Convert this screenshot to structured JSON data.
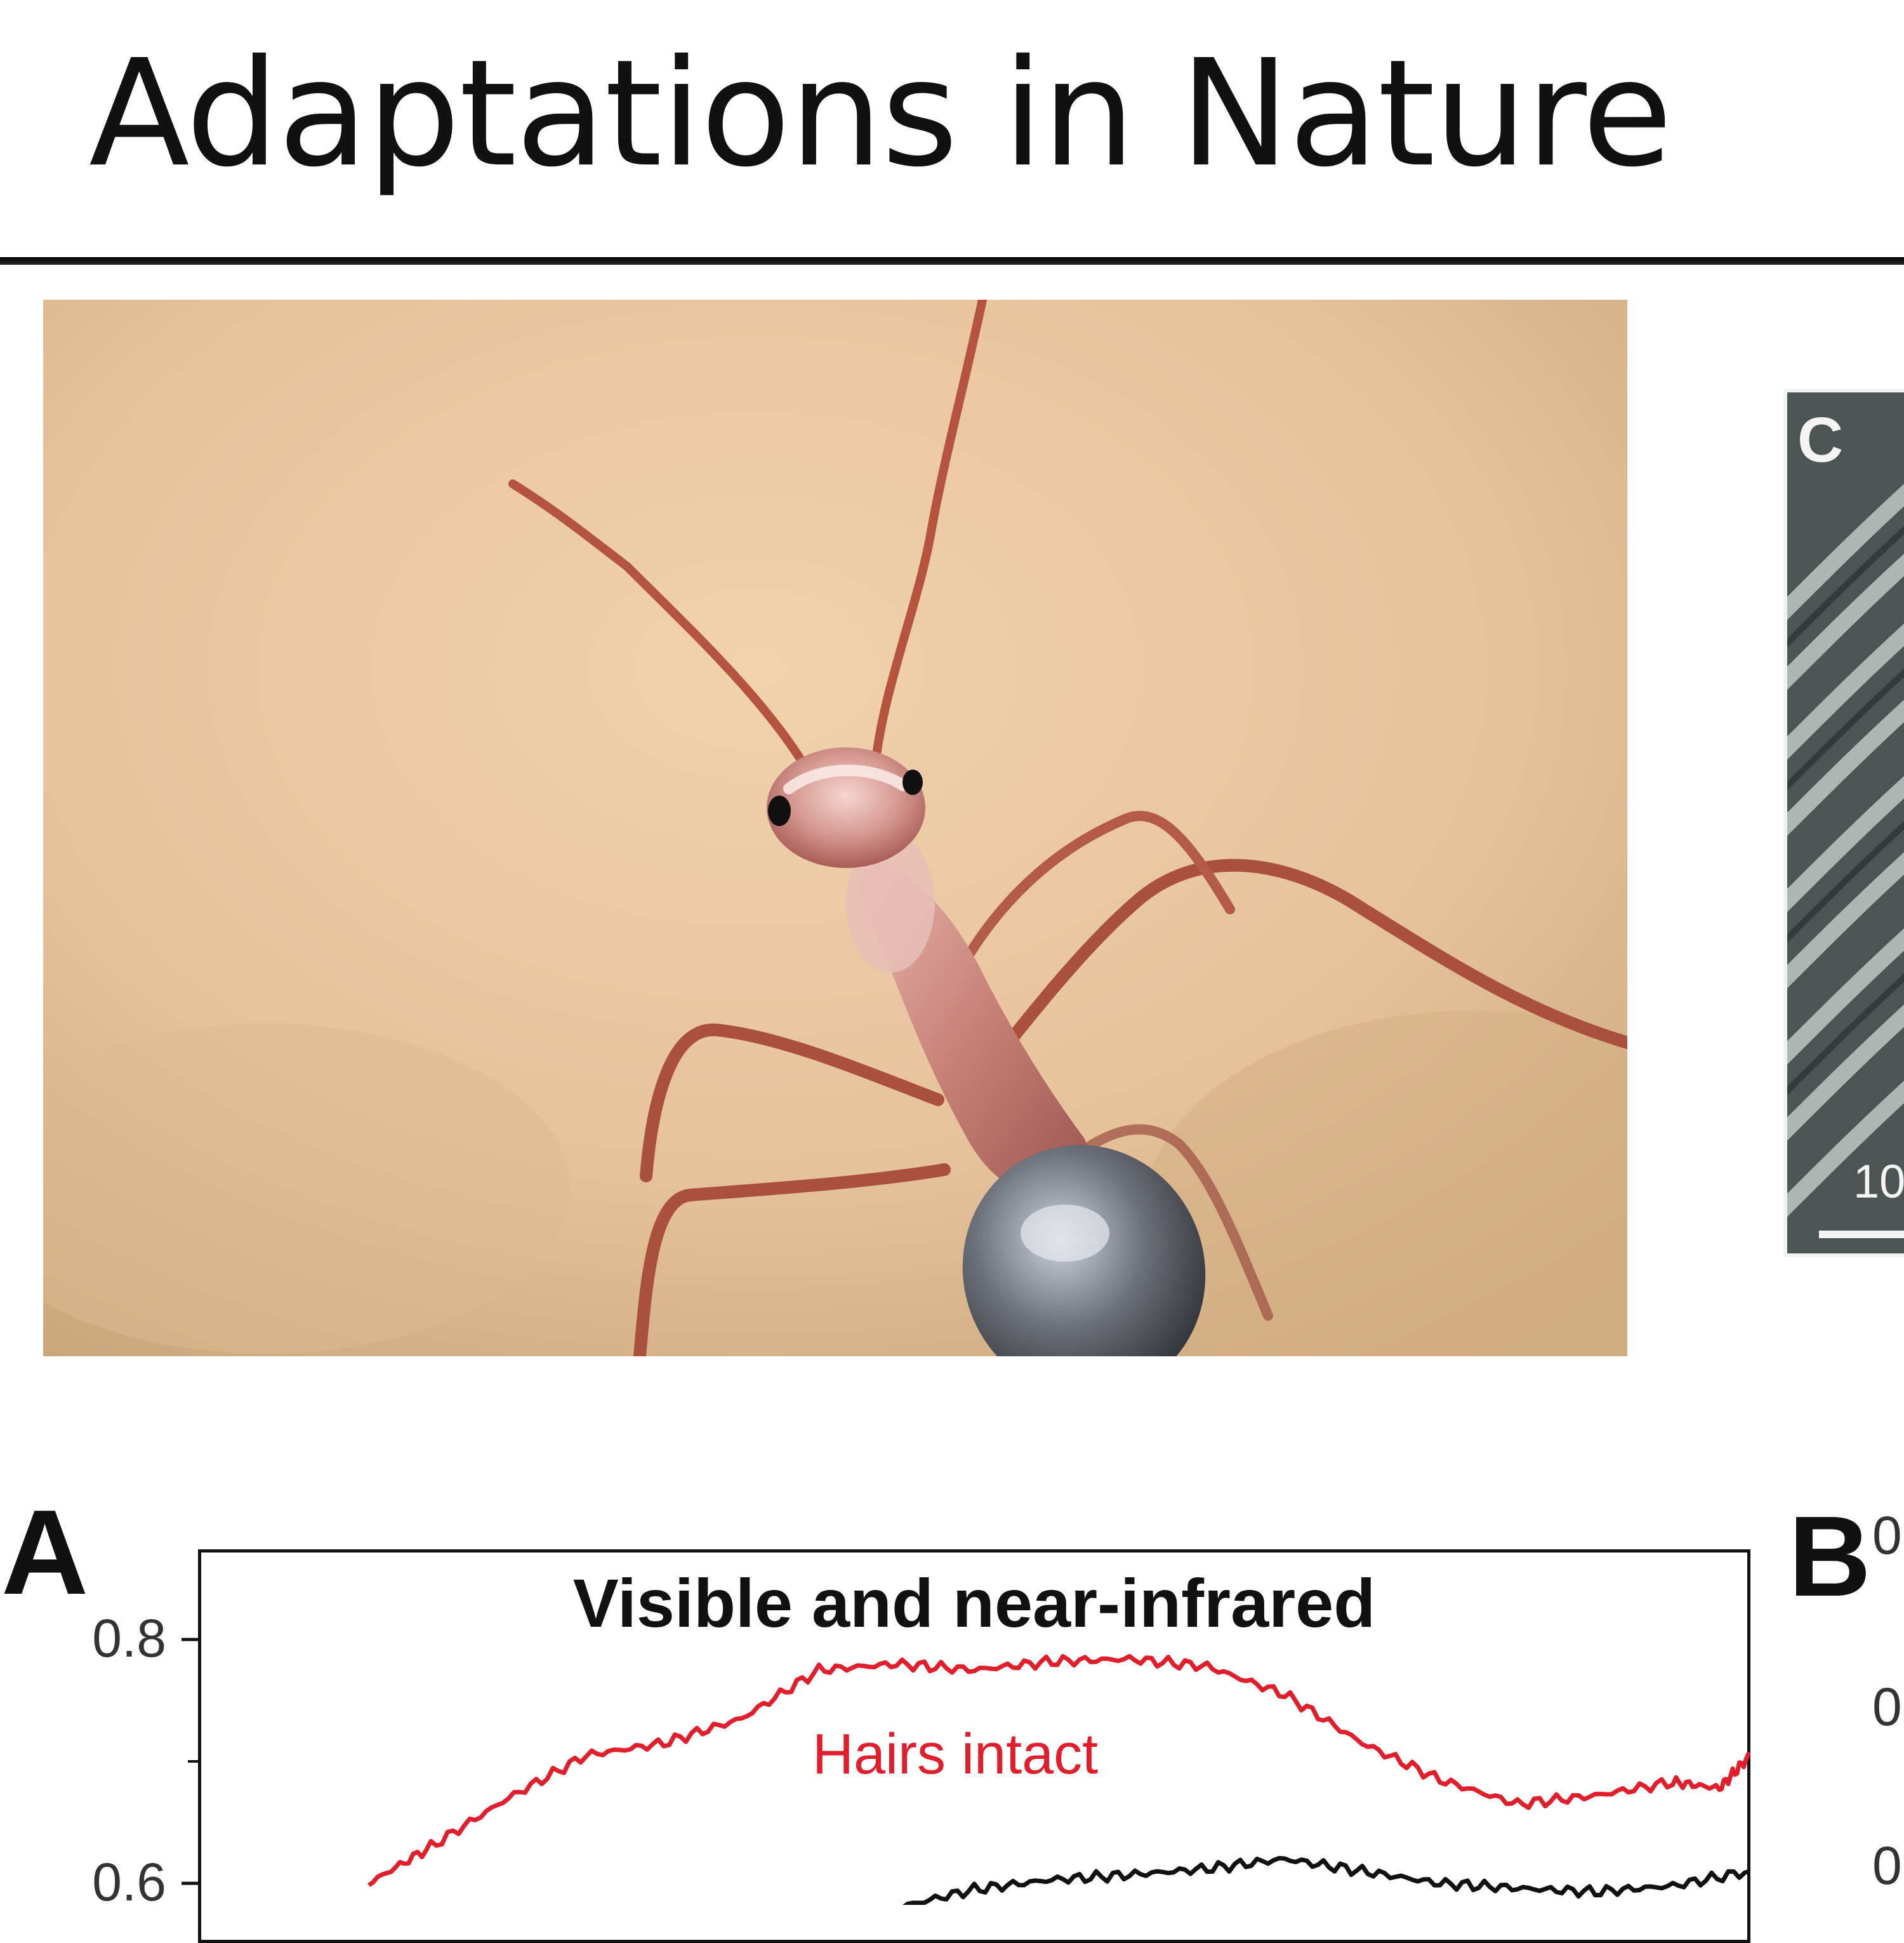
{
  "slide": {
    "title": "Adaptations in Nature"
  },
  "photo": {
    "subject": "silver ant on sand"
  },
  "sem_panel": {
    "letter": "C",
    "scale_text": "10"
  },
  "panel_letters": {
    "a": "A",
    "b": "B"
  },
  "panel_b": {
    "tick_fragments": [
      "0",
      "0",
      "0"
    ]
  },
  "colors": {
    "hairs_intact": "#e01e2c",
    "hairs_removed": "#111111",
    "sand": "#e9c9a3"
  },
  "chart_data": {
    "type": "line",
    "title": "Visible and near-infrared",
    "xlabel": "",
    "ylabel": "",
    "yticks": [
      0.8,
      0.6
    ],
    "ylim": [
      0.58,
      0.82
    ],
    "xlim": [
      0,
      100
    ],
    "series": [
      {
        "name": "Hairs intact",
        "color": "#e01e2c",
        "x": [
          11,
          15,
          20,
          25,
          30,
          35,
          40,
          45,
          50,
          55,
          60,
          65,
          70,
          75,
          80,
          85,
          90,
          95,
          98,
          100
        ],
        "y": [
          0.6,
          0.63,
          0.67,
          0.705,
          0.715,
          0.735,
          0.775,
          0.78,
          0.775,
          0.782,
          0.784,
          0.778,
          0.755,
          0.715,
          0.685,
          0.665,
          0.672,
          0.683,
          0.678,
          0.705
        ]
      },
      {
        "name": "",
        "color": "#111111",
        "x": [
          45,
          50,
          55,
          60,
          65,
          70,
          75,
          80,
          85,
          90,
          95,
          100
        ],
        "y": [
          0.58,
          0.595,
          0.603,
          0.607,
          0.612,
          0.62,
          0.61,
          0.6,
          0.596,
          0.593,
          0.598,
          0.61
        ]
      }
    ]
  }
}
